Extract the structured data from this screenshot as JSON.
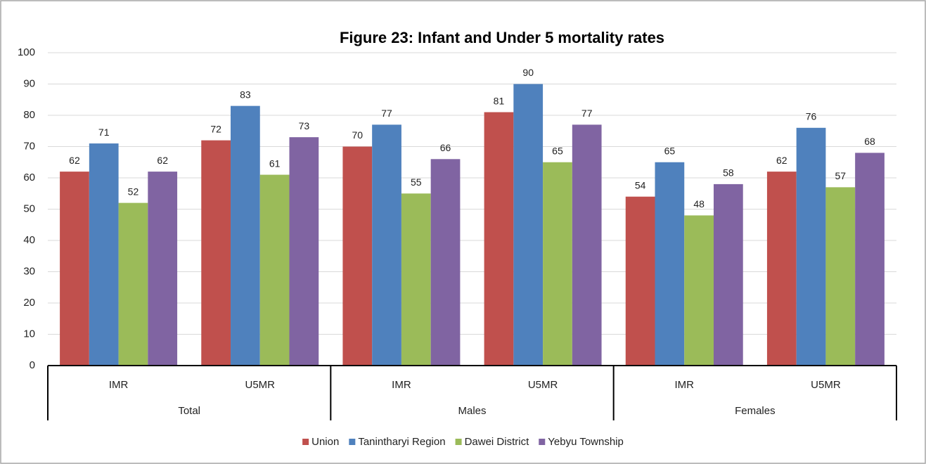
{
  "chart_data": {
    "type": "bar",
    "title": "Figure 23: Infant and Under 5 mortality rates",
    "categories": [
      "IMR",
      "U5MR",
      "IMR",
      "U5MR",
      "IMR",
      "U5MR"
    ],
    "category_groups": [
      "Total",
      "Males",
      "Females"
    ],
    "series": [
      {
        "name": "Union",
        "color": "#c0504d",
        "values": [
          62,
          72,
          70,
          81,
          54,
          62
        ]
      },
      {
        "name": "Tanintharyi Region",
        "color": "#4f81bd",
        "values": [
          71,
          83,
          77,
          90,
          65,
          76
        ]
      },
      {
        "name": "Dawei District",
        "color": "#9bbb59",
        "values": [
          52,
          61,
          55,
          65,
          48,
          57
        ]
      },
      {
        "name": "Yebyu Township",
        "color": "#8064a2",
        "values": [
          62,
          73,
          66,
          77,
          58,
          68
        ]
      }
    ],
    "ylim": [
      0,
      100
    ],
    "yticks": [
      0,
      10,
      20,
      30,
      40,
      50,
      60,
      70,
      80,
      90,
      100
    ],
    "grid": true,
    "legend": "bottom"
  }
}
